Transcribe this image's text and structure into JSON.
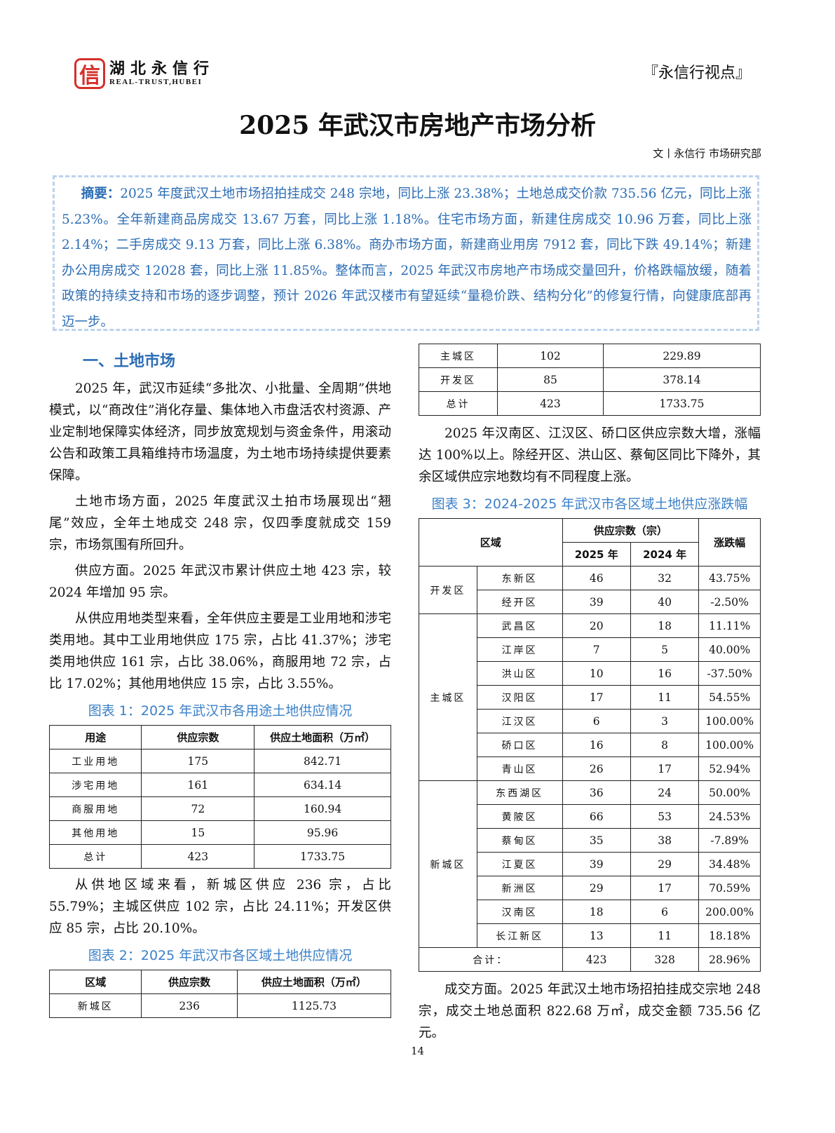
{
  "header": {
    "logo_seal": "信",
    "logo_cn": "湖北永信行",
    "logo_en": "REAL-TRUST,HUBEI",
    "viewpoint": "『永信行视点』"
  },
  "title": "2025 年武汉市房地产市场分析",
  "byline": "文丨永信行 市场研究部",
  "abstract": {
    "label": "摘要：",
    "text": "2025 年度武汉土地市场招拍挂成交 248 宗地，同比上涨 23.38%；土地总成交价款 735.56 亿元，同比上涨 5.23%。全年新建商品房成交 13.67 万套，同比上涨 1.18%。住宅市场方面，新建住房成交 10.96 万套，同比上涨 2.14%；二手房成交 9.13 万套，同比上涨 6.38%。商办市场方面，新建商业用房 7912 套，同比下跌 49.14%；新建办公用房成交 12028 套，同比上涨 11.85%。整体而言，2025 年武汉市房地产市场成交量回升，价格跌幅放缓，随着政策的持续支持和市场的逐步调整，预计 2026 年武汉楼市有望延续“量稳价跌、结构分化”的修复行情，向健康底部再迈一步。"
  },
  "section1": {
    "heading": "一、土地市场",
    "paragraphs": [
      "2025 年，武汉市延续“多批次、小批量、全周期”供地模式，以“商改住”消化存量、集体地入市盘活农村资源、产业定制地保障实体经济，同步放宽规划与资金条件，用滚动公告和政策工具箱维持市场温度，为土地市场持续提供要素保障。",
      "土地市场方面，2025 年度武汉土拍市场展现出“翘尾”效应，全年土地成交 248 宗，仅四季度就成交 159 宗，市场氛围有所回升。",
      "供应方面。2025 年武汉市累计供应土地 423 宗，较 2024 年增加 95 宗。",
      "从供应用地类型来看，全年供应主要是工业用地和涉宅类用地。其中工业用地供应 175 宗，占比 41.37%；涉宅类用地供应 161 宗，占比 38.06%，商服用地 72 宗，占比 17.02%；其他用地供应 15 宗，占比 3.55%。"
    ],
    "after_table1": "从供地区域来看，新城区供应 236 宗，占比 55.79%；主城区供应 102 宗，占比 24.11%；开发区供应 85 宗，占比 20.10%。",
    "right_paragraph": "2025 年汉南区、江汉区、硚口区供应宗数大增，涨幅达 100%以上。除经开区、洪山区、蔡甸区同比下降外，其余区域供应宗地数均有不同程度上涨。",
    "final_paragraph": "成交方面。2025 年武汉土地市场招拍挂成交宗地 248 宗，成交土地总面积 822.68 万㎡，成交金额 735.56 亿元。"
  },
  "table1": {
    "caption": "图表 1：2025 年武汉市各用途土地供应情况",
    "headers": [
      "用途",
      "供应宗数",
      "供应土地面积（万㎡）"
    ],
    "rows": [
      [
        "工业用地",
        "175",
        "842.71"
      ],
      [
        "涉宅用地",
        "161",
        "634.14"
      ],
      [
        "商服用地",
        "72",
        "160.94"
      ],
      [
        "其他用地",
        "15",
        "95.96"
      ],
      [
        "总计",
        "423",
        "1733.75"
      ]
    ]
  },
  "table2": {
    "caption": "图表 2：2025 年武汉市各区域土地供应情况",
    "headers": [
      "区域",
      "供应宗数",
      "供应土地面积（万㎡）"
    ],
    "rows": [
      [
        "新城区",
        "236",
        "1125.73"
      ],
      [
        "主城区",
        "102",
        "229.89"
      ],
      [
        "开发区",
        "85",
        "378.14"
      ],
      [
        "总计",
        "423",
        "1733.75"
      ]
    ]
  },
  "table3": {
    "caption": "图表 3：2024-2025 年武汉市各区域土地供应涨跌幅",
    "header_region": "区域",
    "header_supply": "供应宗数（宗）",
    "header_2025": "2025 年",
    "header_2024": "2024 年",
    "header_change": "涨跌幅",
    "groups": [
      {
        "name": "开发区",
        "rows": [
          [
            "东新区",
            "46",
            "32",
            "43.75%"
          ],
          [
            "经开区",
            "39",
            "40",
            "-2.50%"
          ]
        ]
      },
      {
        "name": "主城区",
        "rows": [
          [
            "武昌区",
            "20",
            "18",
            "11.11%"
          ],
          [
            "江岸区",
            "7",
            "5",
            "40.00%"
          ],
          [
            "洪山区",
            "10",
            "16",
            "-37.50%"
          ],
          [
            "汉阳区",
            "17",
            "11",
            "54.55%"
          ],
          [
            "江汉区",
            "6",
            "3",
            "100.00%"
          ],
          [
            "硚口区",
            "16",
            "8",
            "100.00%"
          ],
          [
            "青山区",
            "26",
            "17",
            "52.94%"
          ]
        ]
      },
      {
        "name": "新城区",
        "rows": [
          [
            "东西湖区",
            "36",
            "24",
            "50.00%"
          ],
          [
            "黄陂区",
            "66",
            "53",
            "24.53%"
          ],
          [
            "蔡甸区",
            "35",
            "38",
            "-7.89%"
          ],
          [
            "江夏区",
            "39",
            "29",
            "34.48%"
          ],
          [
            "新洲区",
            "29",
            "17",
            "70.59%"
          ],
          [
            "汉南区",
            "18",
            "6",
            "200.00%"
          ],
          [
            "长江新区",
            "13",
            "11",
            "18.18%"
          ]
        ]
      }
    ],
    "total": [
      "合计：",
      "423",
      "328",
      "28.96%"
    ]
  },
  "page_number": "14",
  "colors": {
    "accent_blue": "#2c6db5",
    "seal_red": "#d4302a",
    "border_dash": "#bcd3ee"
  }
}
